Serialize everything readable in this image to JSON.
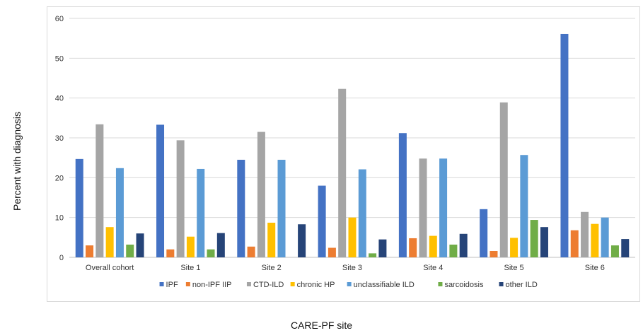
{
  "chart_data": {
    "type": "bar",
    "title": "",
    "xlabel": "CARE-PF site",
    "ylabel": "Percent with diagnosis",
    "categories": [
      "Overall cohort",
      "Site 1",
      "Site 2",
      "Site 3",
      "Site 4",
      "Site 5",
      "Site 6"
    ],
    "ylim": [
      0,
      60
    ],
    "yticks": [
      0,
      10,
      20,
      30,
      40,
      50,
      60
    ],
    "grid": true,
    "legend": "bottom",
    "series": [
      {
        "name": "IPF",
        "color": "#4472c4",
        "values": [
          24.7,
          33.3,
          24.5,
          18.0,
          31.2,
          12.1,
          56.1
        ]
      },
      {
        "name": "non-IPF IIP",
        "color": "#ed7d31",
        "values": [
          3.0,
          2.0,
          2.7,
          2.4,
          4.8,
          1.6,
          6.8
        ]
      },
      {
        "name": "CTD-ILD",
        "color": "#a5a5a5",
        "values": [
          33.4,
          29.4,
          31.5,
          42.3,
          24.8,
          38.9,
          11.4
        ]
      },
      {
        "name": "chronic HP",
        "color": "#ffc000",
        "values": [
          7.6,
          5.2,
          8.7,
          10.0,
          5.4,
          4.9,
          8.4
        ]
      },
      {
        "name": "unclassifiable ILD",
        "color": "#5b9bd5",
        "values": [
          22.4,
          22.2,
          24.5,
          22.1,
          24.8,
          25.7,
          10.0
        ]
      },
      {
        "name": "sarcoidosis",
        "color": "#70ad47",
        "values": [
          3.2,
          2.0,
          0.0,
          1.0,
          3.2,
          9.4,
          3.0
        ]
      },
      {
        "name": "other ILD",
        "color": "#264478",
        "values": [
          6.0,
          6.1,
          8.3,
          4.5,
          5.9,
          7.6,
          4.6
        ]
      }
    ]
  }
}
